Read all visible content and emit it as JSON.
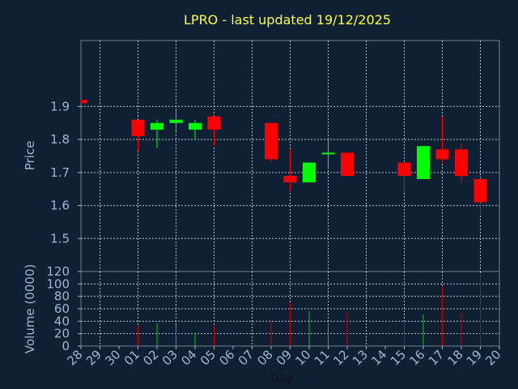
{
  "chart_data": {
    "type": "candlestick",
    "title": "LPRO - last updated 19/12/2025",
    "xlabel": "Day",
    "price_panel": {
      "ylabel": "Price",
      "ylim": [
        1.4,
        2.1
      ],
      "yticks": [
        1.5,
        1.6,
        1.7,
        1.8,
        1.9
      ]
    },
    "volume_panel": {
      "ylabel": "Volume (0000)",
      "ylim": [
        0,
        120
      ],
      "yticks": [
        0,
        20,
        40,
        60,
        80,
        100,
        120
      ]
    },
    "x_ticks": [
      "28",
      "29",
      "30",
      "01",
      "02",
      "03",
      "04",
      "05",
      "06",
      "07",
      "08",
      "09",
      "10",
      "11",
      "12",
      "13",
      "14",
      "15",
      "16",
      "17",
      "18",
      "19",
      "20"
    ],
    "grid": true,
    "colors": {
      "up": "#00ff00",
      "down": "#ff0000",
      "volume_up": "#00cc00",
      "volume_down": "#cc0000"
    },
    "candles": [
      {
        "day": "28",
        "open": 1.92,
        "high": 1.92,
        "low": 1.91,
        "close": 1.91,
        "volume": 0
      },
      {
        "day": "01",
        "open": 1.86,
        "high": 1.86,
        "low": 1.765,
        "close": 1.81,
        "volume": 33
      },
      {
        "day": "02",
        "open": 1.83,
        "high": 1.86,
        "low": 1.775,
        "close": 1.85,
        "volume": 37
      },
      {
        "day": "03",
        "open": 1.85,
        "high": 1.89,
        "low": 1.82,
        "close": 1.86,
        "volume": 34
      },
      {
        "day": "04",
        "open": 1.83,
        "high": 1.86,
        "low": 1.8,
        "close": 1.85,
        "volume": 21
      },
      {
        "day": "05",
        "open": 1.87,
        "high": 1.87,
        "low": 1.78,
        "close": 1.83,
        "volume": 32
      },
      {
        "day": "08",
        "open": 1.85,
        "high": 1.85,
        "low": 1.73,
        "close": 1.74,
        "volume": 40
      },
      {
        "day": "09",
        "open": 1.69,
        "high": 1.77,
        "low": 1.645,
        "close": 1.67,
        "volume": 70
      },
      {
        "day": "10",
        "open": 1.67,
        "high": 1.73,
        "low": 1.67,
        "close": 1.73,
        "volume": 56
      },
      {
        "day": "11",
        "open": 1.76,
        "high": 1.8,
        "low": 1.71,
        "close": 1.76,
        "volume": 38
      },
      {
        "day": "12",
        "open": 1.76,
        "high": 1.76,
        "low": 1.69,
        "close": 1.69,
        "volume": 54
      },
      {
        "day": "15",
        "open": 1.73,
        "high": 1.73,
        "low": 1.64,
        "close": 1.69,
        "volume": 40
      },
      {
        "day": "16",
        "open": 1.68,
        "high": 1.78,
        "low": 1.68,
        "close": 1.78,
        "volume": 51
      },
      {
        "day": "17",
        "open": 1.77,
        "high": 1.87,
        "low": 1.73,
        "close": 1.74,
        "volume": 95
      },
      {
        "day": "18",
        "open": 1.77,
        "high": 1.79,
        "low": 1.67,
        "close": 1.69,
        "volume": 53
      },
      {
        "day": "19",
        "open": 1.68,
        "high": 1.68,
        "low": 1.575,
        "close": 1.61,
        "volume": 116
      }
    ]
  }
}
